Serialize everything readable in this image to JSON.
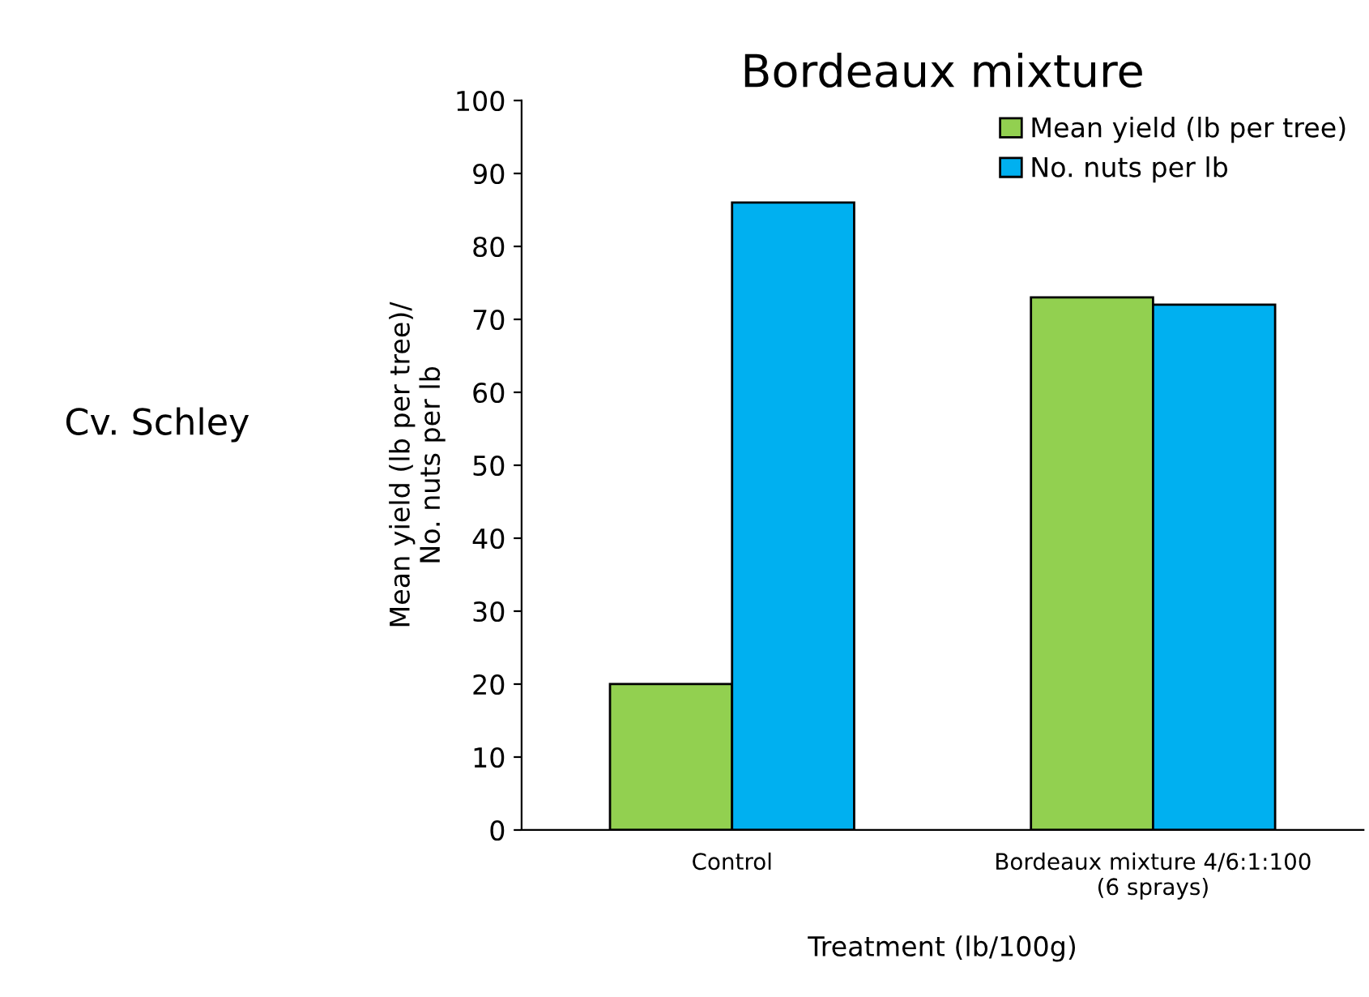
{
  "chart_data": {
    "type": "bar",
    "title": "Bordeaux mixture",
    "categories": [
      "Control",
      "Bordeaux mixture 4/6:1:100\n(6 sprays)"
    ],
    "series": [
      {
        "name": "Mean yield (lb per tree)",
        "color": "#92d050",
        "values": [
          20,
          73
        ]
      },
      {
        "name": "No. nuts per lb",
        "color": "#00b0f0",
        "values": [
          86,
          72
        ]
      }
    ],
    "xlabel": "Treatment (lb/100g)",
    "ylabel": "Mean yield (lb per tree)/\nNo. nuts per lb",
    "ylim": [
      0,
      100
    ],
    "yticks": [
      0,
      10,
      20,
      30,
      40,
      50,
      60,
      70,
      80,
      90,
      100
    ],
    "annotations": [
      "Cv. Schley"
    ],
    "legend": "top right",
    "grid": false
  }
}
